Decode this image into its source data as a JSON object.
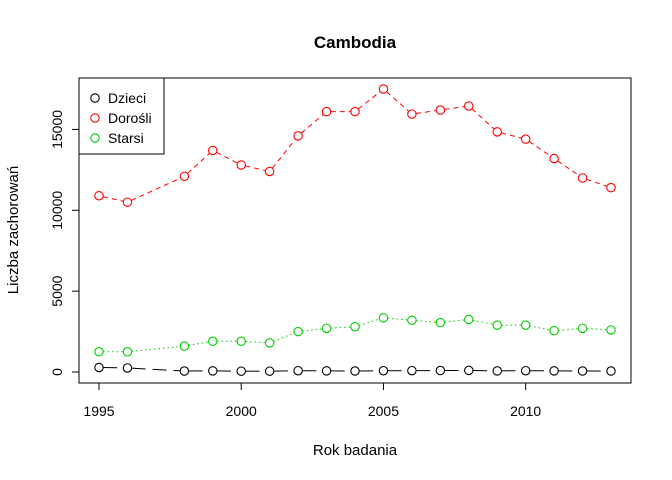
{
  "chart_data": {
    "type": "line",
    "title": "Cambodia",
    "xlabel": "Rok badania",
    "ylabel": "Liczba zachorowań",
    "xlim": [
      1995,
      2013
    ],
    "ylim": [
      0,
      17500
    ],
    "xticks": [
      1995,
      2000,
      2005,
      2010
    ],
    "yticks": [
      0,
      5000,
      10000,
      15000
    ],
    "grid": false,
    "legend_position": "top-left",
    "x": [
      1995,
      1996,
      1998,
      1999,
      2000,
      2001,
      2002,
      2003,
      2004,
      2005,
      2006,
      2007,
      2008,
      2009,
      2010,
      2011,
      2012,
      2013
    ],
    "series": [
      {
        "name": "Dzieci",
        "color": "#000000",
        "dash": "longdash",
        "values": [
          280,
          250,
          60,
          70,
          50,
          50,
          80,
          70,
          60,
          80,
          80,
          90,
          100,
          70,
          80,
          70,
          60,
          60
        ]
      },
      {
        "name": "Dorośli",
        "color": "#ff0000",
        "dash": "dashed",
        "values": [
          10900,
          10500,
          12100,
          13700,
          12800,
          12400,
          14600,
          16100,
          16100,
          17500,
          15950,
          16200,
          16450,
          14850,
          14400,
          13200,
          12000,
          11400
        ]
      },
      {
        "name": "Starsi",
        "color": "#00cc00",
        "dash": "dotted",
        "values": [
          1250,
          1250,
          1600,
          1900,
          1900,
          1800,
          2500,
          2700,
          2800,
          3350,
          3200,
          3050,
          3250,
          2900,
          2900,
          2550,
          2700,
          2600
        ]
      }
    ]
  }
}
